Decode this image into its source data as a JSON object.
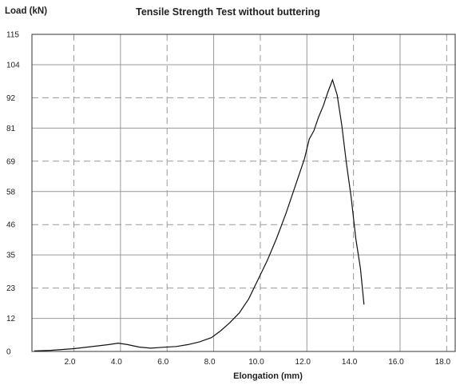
{
  "chart_data": {
    "type": "line",
    "title": "Tensile Strength Test without buttering",
    "ylabel": "Load (kN)",
    "xlabel": "Elongation (mm)",
    "x_ticks": [
      2.0,
      4.0,
      6.0,
      8.0,
      10.0,
      12.0,
      14.0,
      16.0,
      18.0
    ],
    "x_tick_labels": [
      "2.0",
      "4.0",
      "6.0",
      "8.0",
      "10.0",
      "12.0",
      "14.0",
      "16.0",
      "18.0"
    ],
    "y_ticks": [
      0,
      12,
      23,
      35,
      46,
      58,
      69,
      81,
      92,
      104,
      115
    ],
    "y_tick_labels": [
      "0",
      "12",
      "23",
      "35",
      "46",
      "58",
      "69",
      "81",
      "92",
      "104",
      "115"
    ],
    "xlim": [
      0.2,
      18.4
    ],
    "ylim": [
      0,
      115
    ],
    "grid": true,
    "series": [
      {
        "x": [
          0.3,
          1.0,
          2.0,
          3.0,
          3.5,
          3.9,
          4.3,
          4.8,
          5.3,
          5.8,
          6.4,
          6.9,
          7.4,
          7.9,
          8.3,
          8.7,
          9.1,
          9.5,
          9.9,
          10.3,
          10.7,
          11.1,
          11.5,
          11.9,
          12.1,
          12.3,
          12.5,
          12.7,
          12.9,
          13.1,
          13.3,
          13.5,
          13.7,
          13.9,
          14.1,
          14.3,
          14.45
        ],
        "y": [
          0.2,
          0.4,
          1.0,
          2.0,
          2.5,
          3.0,
          2.5,
          1.6,
          1.2,
          1.5,
          1.8,
          2.5,
          3.5,
          5.0,
          7.5,
          10.5,
          14.0,
          19.0,
          26.0,
          33.0,
          41.0,
          50.0,
          60.0,
          70.0,
          77.0,
          80.0,
          85.0,
          89.0,
          94.0,
          98.5,
          93.0,
          82.0,
          68.0,
          56.0,
          41.0,
          30.0,
          17.0
        ]
      }
    ]
  }
}
